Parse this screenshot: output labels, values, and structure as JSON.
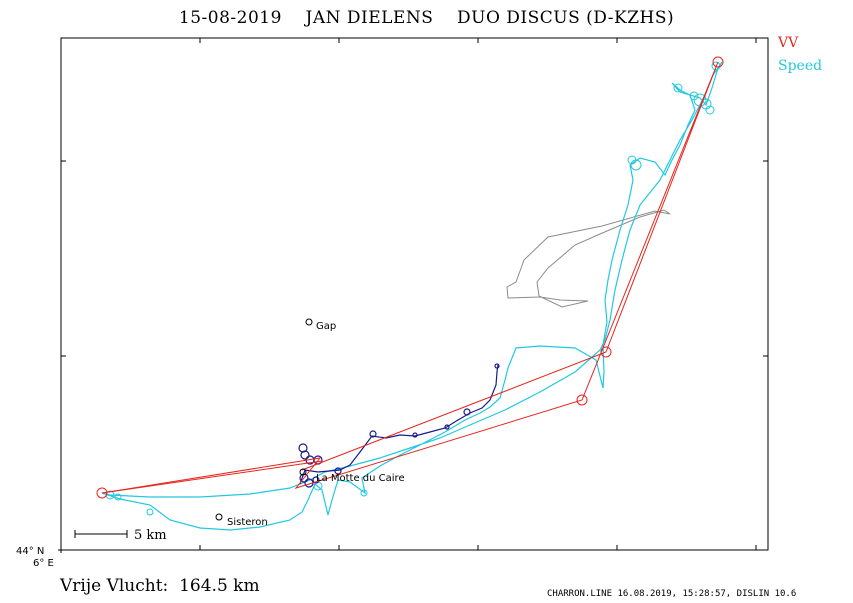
{
  "header": {
    "date": "15-08-2019",
    "pilot": "JAN DIELENS",
    "aircraft": "DUO DISCUS (D-KZHS)"
  },
  "legend": {
    "items": [
      {
        "label": "VV",
        "color": "#e8241c"
      },
      {
        "label": "Speed",
        "color": "#22c8e0"
      }
    ]
  },
  "map": {
    "places": [
      {
        "name": "Gap"
      },
      {
        "name": "La Motte du Caire"
      },
      {
        "name": "Sisteron"
      }
    ],
    "scale_label": "5 km",
    "lat_label": "44° N",
    "lon_label": "6° E",
    "colors": {
      "frame": "#000000",
      "task": "#e8241c",
      "track": "#22c8e0",
      "thermal": "#1a1a8c",
      "airspace": "#8c8c8c"
    }
  },
  "summary": {
    "label": "Vrije Vlucht:",
    "distance": "164.5 km"
  },
  "footer": {
    "text": "CHARRON.LINE 16.08.2019, 15:28:57, DISLIN 10.6"
  }
}
